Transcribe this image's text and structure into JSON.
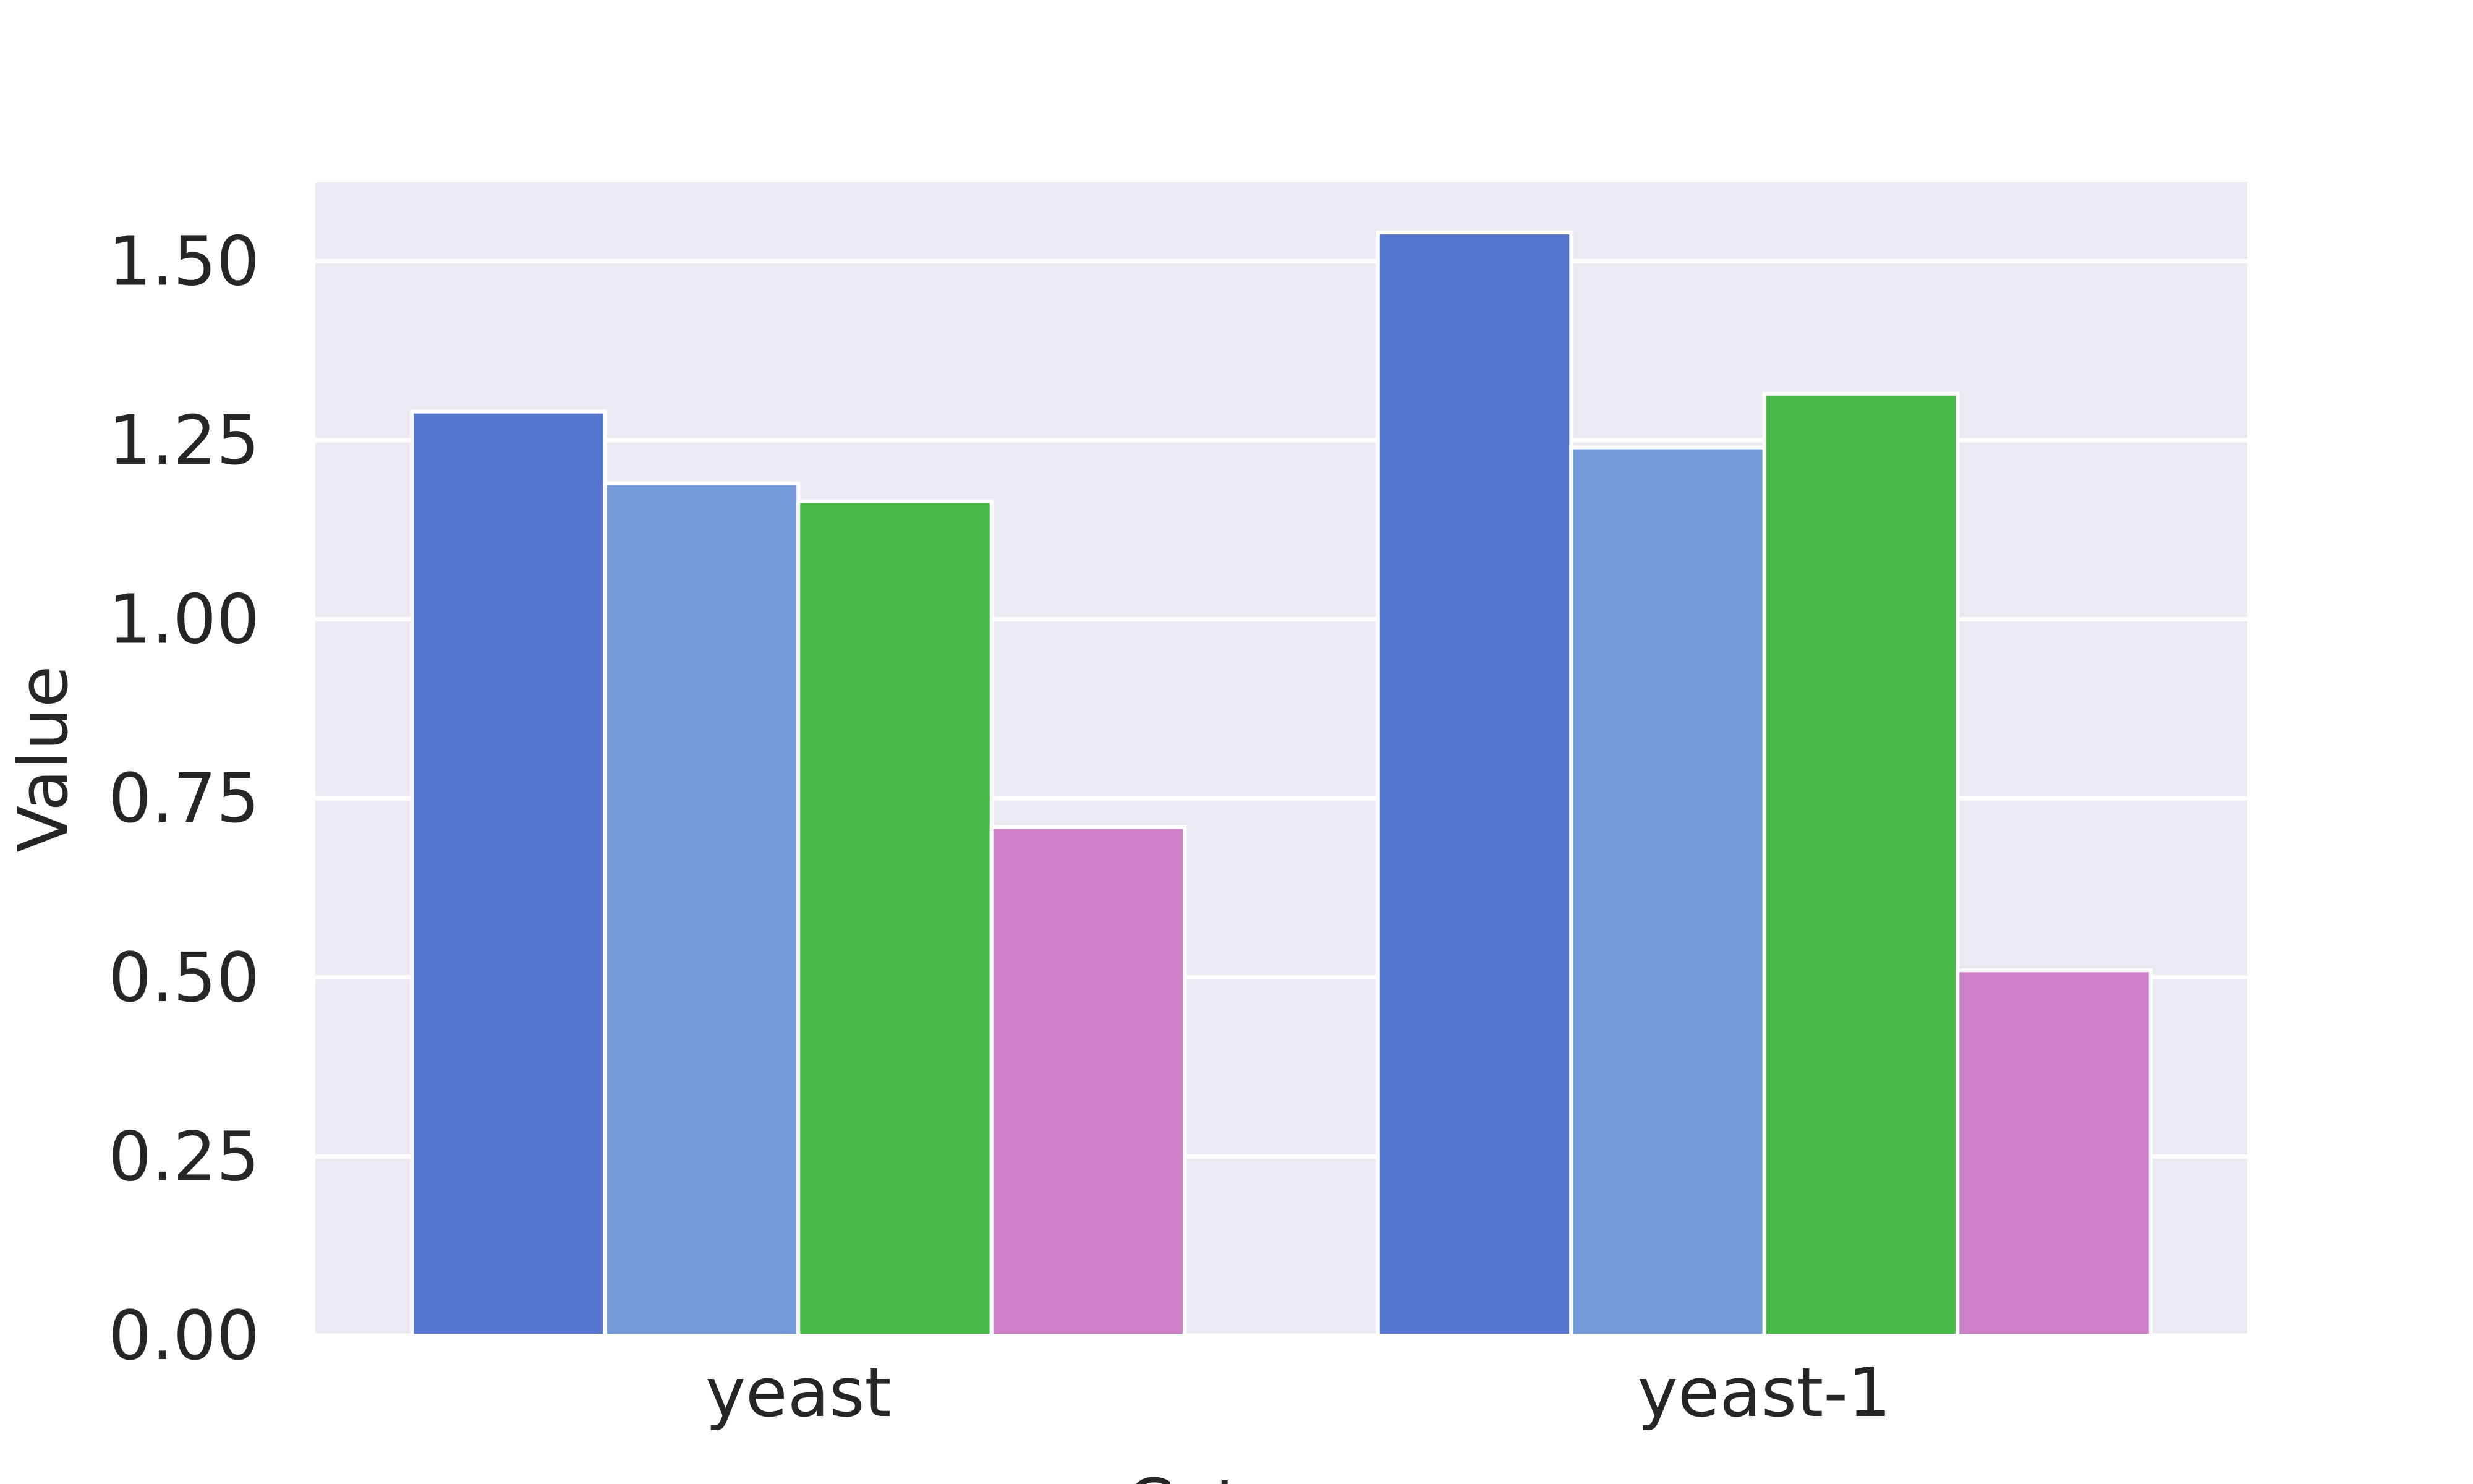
{
  "chart_data": {
    "type": "bar",
    "title": "",
    "xlabel": "Category",
    "ylabel": "Value",
    "categories": [
      "yeast",
      "yeast-1"
    ],
    "series": [
      {
        "values": [
          1.29,
          1.54
        ],
        "color": "#5574cc"
      },
      {
        "values": [
          1.19,
          1.24
        ],
        "color": "#759ada"
      },
      {
        "values": [
          1.165,
          1.315
        ],
        "color": "#47b947"
      },
      {
        "values": [
          0.71,
          0.51
        ],
        "color": "#ce80c8"
      }
    ],
    "ylim": [
      0,
      1.61
    ],
    "yticks": [
      "0.00",
      "0.25",
      "0.50",
      "0.75",
      "1.00",
      "1.25",
      "1.50"
    ],
    "grid": true,
    "legend": "none",
    "background": "#eaeaf2"
  }
}
